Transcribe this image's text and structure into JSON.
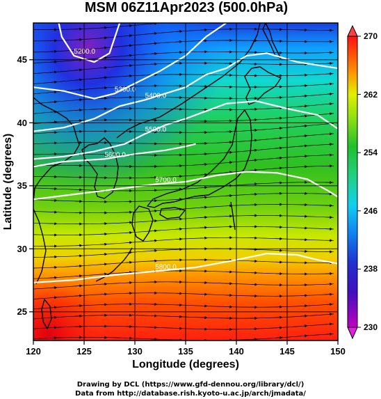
{
  "title": "MSM 06Z11Apr2023 (500.0hPa)",
  "xlabel": "Longitude (degrees)",
  "ylabel": "Latitude  (degrees)",
  "credits": [
    "Drawing by DCL (https://www.gfd-dennou.org/library/dcl/)",
    "Data from http://database.rish.kyoto-u.ac.jp/arch/jmadata/"
  ],
  "chart_data": {
    "type": "heatmap",
    "variable": "temperature",
    "xlim": [
      120,
      150
    ],
    "ylim": [
      22.4,
      47.6
    ],
    "x_ticks": [
      "120",
      "125",
      "130",
      "135",
      "140",
      "145",
      "150"
    ],
    "y_ticks": [
      "25",
      "30",
      "35",
      "40",
      "45"
    ],
    "colorbar": {
      "range": [
        230,
        270
      ],
      "ticks": [
        "230",
        "238",
        "246",
        "254",
        "262",
        "270"
      ],
      "colors": [
        "#c000c0",
        "#2030d0",
        "#10c0f0",
        "#20c030",
        "#d8f000",
        "#ff1010"
      ]
    },
    "contours": {
      "color": "#ffffff",
      "lines": [
        {
          "label": "5200.0",
          "points": [
            [
              122.5,
              47.6
            ],
            [
              122.8,
              46.5
            ],
            [
              124,
              45
            ],
            [
              126,
              44.5
            ],
            [
              127.5,
              45.2
            ],
            [
              128.5,
              47.6
            ]
          ]
        },
        {
          "label": "5300.0",
          "points": [
            [
              120,
              42.5
            ],
            [
              123,
              42.2
            ],
            [
              126,
              41.6
            ],
            [
              128,
              42
            ],
            [
              130,
              42.8
            ],
            [
              132.5,
              43.8
            ],
            [
              135,
              45
            ],
            [
              137,
              46.5
            ],
            [
              139,
              47.6
            ]
          ]
        },
        {
          "label": "5400.0",
          "points": [
            [
              120,
              39
            ],
            [
              123,
              39.3
            ],
            [
              126,
              40
            ],
            [
              128.5,
              41
            ],
            [
              131,
              41.5
            ],
            [
              133,
              42
            ],
            [
              135,
              42.5
            ],
            [
              137,
              43.5
            ],
            [
              139,
              44
            ],
            [
              141,
              45
            ],
            [
              143,
              45.2
            ],
            [
              146,
              44.5
            ],
            [
              150,
              44
            ]
          ]
        },
        {
          "label": "5500.0",
          "points": [
            [
              120,
              36.8
            ],
            [
              123,
              37
            ],
            [
              126,
              37.4
            ],
            [
              129,
              38
            ],
            [
              131,
              38.8
            ],
            [
              133,
              39.5
            ],
            [
              135,
              40
            ],
            [
              137,
              40.6
            ],
            [
              139,
              41.2
            ],
            [
              142,
              41.4
            ],
            [
              145,
              40.8
            ],
            [
              148,
              40.3
            ],
            [
              150,
              39.2
            ]
          ]
        },
        {
          "label": "5600.0",
          "points": [
            [
              120,
              36.2
            ],
            [
              123,
              36.6
            ],
            [
              127,
              36.8
            ],
            [
              130,
              37.2
            ],
            [
              133,
              37.5
            ],
            [
              135,
              37.8
            ],
            [
              136,
              38
            ]
          ]
        },
        {
          "label": "5700.0",
          "points": [
            [
              120,
              33.6
            ],
            [
              124,
              34
            ],
            [
              128,
              34.4
            ],
            [
              132,
              34.8
            ],
            [
              135,
              35
            ],
            [
              138,
              35.5
            ],
            [
              141,
              35.8
            ],
            [
              144,
              35.7
            ],
            [
              147,
              35.2
            ],
            [
              149,
              34.3
            ],
            [
              150,
              33.8
            ]
          ]
        },
        {
          "label": "5800.0",
          "points": [
            [
              120,
              27
            ],
            [
              124,
              27.2
            ],
            [
              128,
              27.6
            ],
            [
              132,
              27.9
            ],
            [
              136,
              28.2
            ],
            [
              140,
              28.8
            ],
            [
              143,
              29.3
            ],
            [
              146,
              29.2
            ],
            [
              148,
              28.8
            ],
            [
              150,
              28.5
            ]
          ]
        }
      ]
    },
    "wind": {
      "direction": "westerly",
      "description": "streamlines and arrows from west-southwest to east-northeast"
    },
    "grid": true
  }
}
